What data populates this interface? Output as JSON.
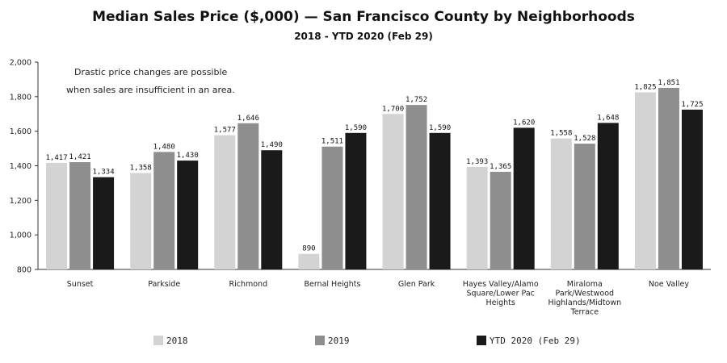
{
  "chart_data": {
    "type": "bar",
    "title": "Median Sales Price ($,000) — San Francisco County by Neighborhoods",
    "subtitle": "2018 - YTD 2020 (Feb 29)",
    "annotation": [
      "Drastic price changes are possible",
      "when sales are insufficient in an area."
    ],
    "categories": [
      [
        "Sunset"
      ],
      [
        "Parkside"
      ],
      [
        "Richmond"
      ],
      [
        "Bernal Heights"
      ],
      [
        "Glen Park"
      ],
      [
        "Hayes Valley/Alamo",
        "Square/Lower Pac",
        "Heights"
      ],
      [
        "Miraloma",
        "Park/Westwood",
        "Highlands/Midtown",
        "Terrace"
      ],
      [
        "Noe Valley"
      ]
    ],
    "series": [
      {
        "name": "2018",
        "color": "#d3d3d3",
        "values": [
          1417,
          1358,
          1577,
          890,
          1700,
          1393,
          1558,
          1825
        ],
        "labels": [
          "1,417",
          "1,358",
          "1,577",
          "890",
          "1,700",
          "1,393",
          "1,558",
          "1,825"
        ]
      },
      {
        "name": "2019",
        "color": "#8e8e8e",
        "values": [
          1421,
          1480,
          1646,
          1511,
          1752,
          1365,
          1528,
          1851
        ],
        "labels": [
          "1,421",
          "1,480",
          "1,646",
          "1,511",
          "1,752",
          "1,365",
          "1,528",
          "1,851"
        ]
      },
      {
        "name": "YTD 2020 (Feb 29)",
        "color": "#1a1a1a",
        "values": [
          1334,
          1430,
          1490,
          1590,
          1590,
          1620,
          1648,
          1725
        ],
        "labels": [
          "1,334",
          "1,430",
          "1,490",
          "1,590",
          "1,590",
          "1,620",
          "1,648",
          "1,725"
        ]
      }
    ],
    "ylim": [
      800,
      2000
    ],
    "yticks": [
      800,
      1000,
      1200,
      1400,
      1600,
      1800,
      2000
    ],
    "ytick_labels": [
      "800",
      "1,000",
      "1,200",
      "1,400",
      "1,600",
      "1,800",
      "2,000"
    ],
    "legend_position": "bottom",
    "grid": false
  }
}
